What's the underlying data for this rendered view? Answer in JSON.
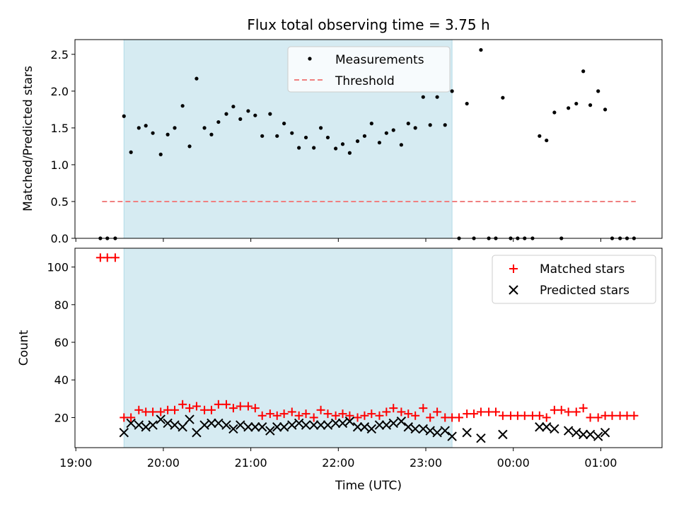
{
  "chart_data": [
    {
      "type": "scatter",
      "title": "Flux total observing time = 3.75 h",
      "xlabel": "",
      "ylabel": "Matched/Predicted stars",
      "x_unit": "hours (19.0 = 19:00 UTC, >24 = next day)",
      "xlim": [
        18.99,
        25.7
      ],
      "ylim": [
        0,
        2.7
      ],
      "yticks": [
        0.0,
        0.5,
        1.0,
        1.5,
        2.0,
        2.5
      ],
      "ytick_labels": [
        "0.0",
        "0.5",
        "1.0",
        "1.5",
        "2.0",
        "2.5"
      ],
      "shaded_region": {
        "x": [
          19.55,
          23.3
        ],
        "color": "#add8e6",
        "alpha": 0.5
      },
      "legend": {
        "placement": "top-center",
        "entries": [
          "Measurements",
          "Threshold"
        ]
      },
      "series": [
        {
          "name": "Measurements",
          "marker": "dot",
          "color": "#000000",
          "points": [
            [
              19.28,
              0
            ],
            [
              19.36,
              0
            ],
            [
              19.45,
              0
            ],
            [
              19.55,
              1.66
            ],
            [
              19.63,
              1.17
            ],
            [
              19.72,
              1.5
            ],
            [
              19.8,
              1.53
            ],
            [
              19.88,
              1.43
            ],
            [
              19.97,
              1.14
            ],
            [
              20.05,
              1.41
            ],
            [
              20.13,
              1.5
            ],
            [
              20.22,
              1.8
            ],
            [
              20.3,
              1.25
            ],
            [
              20.38,
              2.17
            ],
            [
              20.47,
              1.5
            ],
            [
              20.55,
              1.41
            ],
            [
              20.63,
              1.58
            ],
            [
              20.72,
              1.69
            ],
            [
              20.8,
              1.79
            ],
            [
              20.88,
              1.62
            ],
            [
              20.97,
              1.73
            ],
            [
              21.05,
              1.67
            ],
            [
              21.13,
              1.39
            ],
            [
              21.22,
              1.69
            ],
            [
              21.3,
              1.39
            ],
            [
              21.38,
              1.56
            ],
            [
              21.47,
              1.43
            ],
            [
              21.55,
              1.23
            ],
            [
              21.63,
              1.37
            ],
            [
              21.72,
              1.23
            ],
            [
              21.8,
              1.5
            ],
            [
              21.88,
              1.37
            ],
            [
              21.97,
              1.22
            ],
            [
              22.05,
              1.28
            ],
            [
              22.13,
              1.16
            ],
            [
              22.22,
              1.32
            ],
            [
              22.3,
              1.39
            ],
            [
              22.38,
              1.56
            ],
            [
              22.47,
              1.3
            ],
            [
              22.55,
              1.43
            ],
            [
              22.63,
              1.47
            ],
            [
              22.72,
              1.27
            ],
            [
              22.8,
              1.56
            ],
            [
              22.88,
              1.5
            ],
            [
              22.97,
              1.92
            ],
            [
              23.05,
              1.54
            ],
            [
              23.13,
              1.92
            ],
            [
              23.22,
              1.54
            ],
            [
              23.3,
              2.0
            ],
            [
              23.38,
              0
            ],
            [
              23.47,
              1.83
            ],
            [
              23.55,
              0
            ],
            [
              23.63,
              2.56
            ],
            [
              23.72,
              0
            ],
            [
              23.8,
              0
            ],
            [
              23.88,
              1.91
            ],
            [
              23.97,
              0
            ],
            [
              24.05,
              0
            ],
            [
              24.13,
              0
            ],
            [
              24.22,
              0
            ],
            [
              24.3,
              1.39
            ],
            [
              24.38,
              1.33
            ],
            [
              24.47,
              1.71
            ],
            [
              24.55,
              0
            ],
            [
              24.63,
              1.77
            ],
            [
              24.72,
              1.83
            ],
            [
              24.8,
              2.27
            ],
            [
              24.88,
              1.81
            ],
            [
              24.97,
              2.0
            ],
            [
              25.05,
              1.75
            ],
            [
              25.13,
              0
            ],
            [
              25.22,
              0
            ],
            [
              25.3,
              0
            ],
            [
              25.38,
              0
            ]
          ]
        },
        {
          "name": "Threshold",
          "style": "dashed",
          "color": "#f08080",
          "x": [
            19.3,
            25.4
          ],
          "y": [
            0.5,
            0.5
          ]
        }
      ]
    },
    {
      "type": "scatter",
      "title": "",
      "xlabel": "Time (UTC)",
      "ylabel": "Count",
      "xlim": [
        18.99,
        25.7
      ],
      "ylim": [
        4,
        110
      ],
      "yticks": [
        20,
        40,
        60,
        80,
        100
      ],
      "ytick_labels": [
        "20",
        "40",
        "60",
        "80",
        "100"
      ],
      "xticks": [
        19,
        20,
        21,
        22,
        23,
        24,
        25
      ],
      "xtick_labels": [
        "19:00",
        "20:00",
        "21:00",
        "22:00",
        "23:00",
        "00:00",
        "01:00"
      ],
      "shaded_region": {
        "x": [
          19.55,
          23.3
        ],
        "color": "#add8e6",
        "alpha": 0.5
      },
      "legend": {
        "placement": "top-right",
        "entries": [
          "Matched stars",
          "Predicted stars"
        ]
      },
      "series": [
        {
          "name": "Matched stars",
          "marker": "plus",
          "color": "#ff0000",
          "points": [
            [
              19.28,
              105
            ],
            [
              19.36,
              105
            ],
            [
              19.45,
              105
            ],
            [
              19.55,
              20
            ],
            [
              19.63,
              20
            ],
            [
              19.72,
              24
            ],
            [
              19.8,
              23
            ],
            [
              19.88,
              23
            ],
            [
              19.97,
              23
            ],
            [
              20.05,
              24
            ],
            [
              20.13,
              24
            ],
            [
              20.22,
              27
            ],
            [
              20.3,
              25
            ],
            [
              20.38,
              26
            ],
            [
              20.47,
              24
            ],
            [
              20.55,
              24
            ],
            [
              20.63,
              27
            ],
            [
              20.72,
              27
            ],
            [
              20.8,
              25
            ],
            [
              20.88,
              26
            ],
            [
              20.97,
              26
            ],
            [
              21.05,
              25
            ],
            [
              21.13,
              21
            ],
            [
              21.22,
              22
            ],
            [
              21.3,
              21
            ],
            [
              21.38,
              22
            ],
            [
              21.47,
              23
            ],
            [
              21.55,
              21
            ],
            [
              21.63,
              22
            ],
            [
              21.72,
              20
            ],
            [
              21.8,
              24
            ],
            [
              21.88,
              22
            ],
            [
              21.97,
              21
            ],
            [
              22.05,
              22
            ],
            [
              22.13,
              21
            ],
            [
              22.22,
              20
            ],
            [
              22.3,
              21
            ],
            [
              22.38,
              22
            ],
            [
              22.47,
              21
            ],
            [
              22.55,
              23
            ],
            [
              22.63,
              25
            ],
            [
              22.72,
              23
            ],
            [
              22.8,
              22
            ],
            [
              22.88,
              21
            ],
            [
              22.97,
              25
            ],
            [
              23.05,
              20
            ],
            [
              23.13,
              23
            ],
            [
              23.22,
              20
            ],
            [
              23.3,
              20
            ],
            [
              23.38,
              20
            ],
            [
              23.47,
              22
            ],
            [
              23.55,
              22
            ],
            [
              23.63,
              23
            ],
            [
              23.72,
              23
            ],
            [
              23.8,
              23
            ],
            [
              23.88,
              21
            ],
            [
              23.97,
              21
            ],
            [
              24.05,
              21
            ],
            [
              24.13,
              21
            ],
            [
              24.22,
              21
            ],
            [
              24.3,
              21
            ],
            [
              24.38,
              20
            ],
            [
              24.47,
              24
            ],
            [
              24.55,
              24
            ],
            [
              24.63,
              23
            ],
            [
              24.72,
              23
            ],
            [
              24.8,
              25
            ],
            [
              24.88,
              20
            ],
            [
              24.97,
              20
            ],
            [
              25.05,
              21
            ],
            [
              25.13,
              21
            ],
            [
              25.22,
              21
            ],
            [
              25.3,
              21
            ],
            [
              25.38,
              21
            ]
          ]
        },
        {
          "name": "Predicted stars",
          "marker": "x",
          "color": "#000000",
          "points": [
            [
              19.55,
              12
            ],
            [
              19.63,
              17
            ],
            [
              19.72,
              16
            ],
            [
              19.8,
              15
            ],
            [
              19.88,
              16
            ],
            [
              19.97,
              19
            ],
            [
              20.05,
              17
            ],
            [
              20.13,
              16
            ],
            [
              20.22,
              15
            ],
            [
              20.3,
              19
            ],
            [
              20.38,
              12
            ],
            [
              20.47,
              16
            ],
            [
              20.55,
              17
            ],
            [
              20.63,
              17
            ],
            [
              20.72,
              16
            ],
            [
              20.8,
              14
            ],
            [
              20.88,
              16
            ],
            [
              20.97,
              15
            ],
            [
              21.05,
              15
            ],
            [
              21.13,
              15
            ],
            [
              21.22,
              13
            ],
            [
              21.3,
              15
            ],
            [
              21.38,
              15
            ],
            [
              21.47,
              16
            ],
            [
              21.55,
              17
            ],
            [
              21.63,
              16
            ],
            [
              21.72,
              16
            ],
            [
              21.8,
              16
            ],
            [
              21.88,
              16
            ],
            [
              21.97,
              17
            ],
            [
              22.05,
              17
            ],
            [
              22.13,
              18
            ],
            [
              22.22,
              15
            ],
            [
              22.3,
              15
            ],
            [
              22.38,
              14
            ],
            [
              22.47,
              16
            ],
            [
              22.55,
              16
            ],
            [
              22.63,
              17
            ],
            [
              22.72,
              18
            ],
            [
              22.8,
              15
            ],
            [
              22.88,
              14
            ],
            [
              22.97,
              14
            ],
            [
              23.05,
              13
            ],
            [
              23.13,
              12
            ],
            [
              23.22,
              13
            ],
            [
              23.3,
              10
            ],
            [
              23.47,
              12
            ],
            [
              23.63,
              9
            ],
            [
              23.88,
              11
            ],
            [
              24.3,
              15
            ],
            [
              24.38,
              15
            ],
            [
              24.47,
              14
            ],
            [
              24.63,
              13
            ],
            [
              24.72,
              12
            ],
            [
              24.8,
              11
            ],
            [
              24.88,
              11
            ],
            [
              24.97,
              10
            ],
            [
              25.05,
              12
            ]
          ]
        }
      ]
    }
  ]
}
